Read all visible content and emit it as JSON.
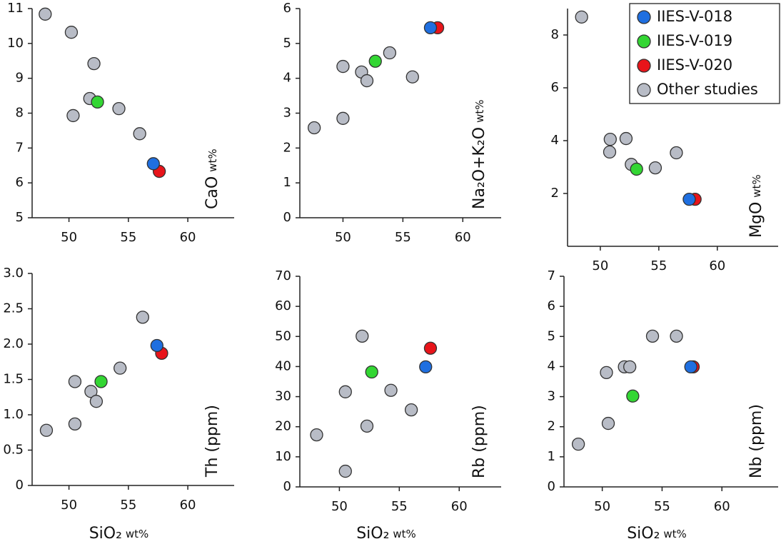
{
  "chart_data": [
    {
      "type": "scatter",
      "y_label": "CaO",
      "y_label_unit": "wt%",
      "xlim": [
        46.9,
        63.9
      ],
      "xticks": [
        50,
        55,
        60
      ],
      "ylim": [
        5,
        11
      ],
      "yticks": [
        5,
        6,
        7,
        8,
        9,
        10,
        11
      ],
      "series": [
        {
          "color": "#1f6fe0",
          "x": [
            57.1
          ],
          "y": [
            6.55
          ]
        },
        {
          "color": "#33d633",
          "x": [
            52.4
          ],
          "y": [
            8.32
          ]
        },
        {
          "color": "#e8141a",
          "x": [
            57.6
          ],
          "y": [
            6.33
          ]
        },
        {
          "color": "#b8bcc6",
          "x": [
            48.0,
            50.2,
            52.1,
            51.75,
            50.35,
            54.2,
            55.95
          ],
          "y": [
            10.84,
            10.32,
            9.42,
            8.42,
            7.93,
            8.13,
            7.41
          ]
        }
      ]
    },
    {
      "type": "scatter",
      "y_label": "Na₂O+K₂O",
      "y_label_unit": "wt%",
      "xlim": [
        46.4,
        63.2
      ],
      "xticks": [
        50,
        55,
        60
      ],
      "ylim": [
        0,
        6
      ],
      "yticks": [
        0,
        1,
        2,
        3,
        4,
        5,
        6
      ],
      "series": [
        {
          "color": "#1f6fe0",
          "x": [
            57.3
          ],
          "y": [
            5.45
          ]
        },
        {
          "color": "#33d633",
          "x": [
            52.7
          ],
          "y": [
            4.49
          ]
        },
        {
          "color": "#e8141a",
          "x": [
            57.9
          ],
          "y": [
            5.45
          ]
        },
        {
          "color": "#b8bcc6",
          "x": [
            47.6,
            50.0,
            50.0,
            51.55,
            52.0,
            53.9,
            55.8
          ],
          "y": [
            2.58,
            2.85,
            4.34,
            4.18,
            3.93,
            4.73,
            4.04
          ]
        }
      ]
    },
    {
      "type": "scatter",
      "y_label": "MgO",
      "y_label_unit": "wt%",
      "legend": "upper right",
      "xlim": [
        47.2,
        65.2
      ],
      "xticks": [
        50,
        55,
        60
      ],
      "ylim": [
        0,
        9
      ],
      "yticks": [
        2,
        4,
        6,
        8
      ],
      "series": [
        {
          "name": "IIES-V-018",
          "color": "#1f6fe0",
          "x": [
            57.6
          ],
          "y": [
            1.78
          ]
        },
        {
          "name": "IIES-V-019",
          "color": "#33d633",
          "x": [
            53.1
          ],
          "y": [
            2.92
          ]
        },
        {
          "name": "IIES-V-020",
          "color": "#e8141a",
          "x": [
            58.1
          ],
          "y": [
            1.78
          ]
        },
        {
          "name": "Other studies",
          "color": "#b8bcc6",
          "x": [
            48.4,
            50.85,
            50.8,
            52.2,
            52.65,
            54.7,
            56.5
          ],
          "y": [
            8.68,
            4.05,
            3.57,
            4.08,
            3.1,
            2.97,
            3.54
          ]
        }
      ]
    },
    {
      "type": "scatter",
      "y_label": "Th (ppm)",
      "x_label": "SiO₂",
      "x_label_unit": "wt%",
      "xlim": [
        46.9,
        63.9
      ],
      "xticks": [
        50,
        55,
        60
      ],
      "ylim": [
        0,
        3
      ],
      "yticks": [
        0,
        0.5,
        {
          "value": 1,
          "label": "1.0"
        },
        1.5,
        {
          "value": 2,
          "label": "2.0"
        },
        2.5,
        {
          "value": 3,
          "label": "3.0"
        }
      ],
      "series": [
        {
          "color": "#1f6fe0",
          "x": [
            57.4
          ],
          "y": [
            1.98
          ]
        },
        {
          "color": "#33d633",
          "x": [
            52.7
          ],
          "y": [
            1.47
          ]
        },
        {
          "color": "#e8141a",
          "x": [
            57.8
          ],
          "y": [
            1.87
          ]
        },
        {
          "color": "#b8bcc6",
          "x": [
            48.1,
            50.5,
            50.5,
            51.85,
            52.3,
            54.3,
            56.2
          ],
          "y": [
            0.78,
            0.87,
            1.47,
            1.33,
            1.19,
            1.66,
            2.38
          ]
        }
      ]
    },
    {
      "type": "scatter",
      "y_label": "Rb (ppm)",
      "x_label": "SiO₂",
      "x_label_unit": "wt%",
      "xlim": [
        46.7,
        63.5
      ],
      "xticks": [
        50,
        55,
        60
      ],
      "ylim": [
        0,
        70
      ],
      "yticks": [
        0,
        10,
        20,
        30,
        40,
        50,
        60,
        70
      ],
      "series": [
        {
          "color": "#1f6fe0",
          "x": [
            57.2
          ],
          "y": [
            39.9
          ]
        },
        {
          "color": "#33d633",
          "x": [
            52.7
          ],
          "y": [
            38.2
          ]
        },
        {
          "color": "#e8141a",
          "x": [
            57.6
          ],
          "y": [
            46.1
          ]
        },
        {
          "color": "#b8bcc6",
          "x": [
            48.1,
            50.5,
            50.5,
            51.9,
            52.3,
            54.3,
            56.0
          ],
          "y": [
            17.3,
            31.6,
            5.2,
            50.1,
            20.2,
            32.1,
            25.6
          ]
        }
      ]
    },
    {
      "type": "scatter",
      "y_label": "Nb (ppm)",
      "x_label": "SiO₂",
      "x_label_unit": "wt%",
      "xlim": [
        46.8,
        64.7
      ],
      "xticks": [
        50,
        55,
        60
      ],
      "ylim": [
        0,
        7
      ],
      "yticks": [
        0,
        1,
        2,
        3,
        4,
        5,
        6,
        7
      ],
      "series": [
        {
          "color": "#1f6fe0",
          "x": [
            57.4
          ],
          "y": [
            3.99
          ]
        },
        {
          "color": "#33d633",
          "x": [
            52.55
          ],
          "y": [
            3.02
          ]
        },
        {
          "color": "#e8141a",
          "x": [
            57.6
          ],
          "y": [
            3.99
          ]
        },
        {
          "color": "#b8bcc6",
          "x": [
            48.0,
            50.35,
            50.5,
            51.85,
            52.3,
            54.2,
            56.2
          ],
          "y": [
            1.42,
            3.8,
            2.11,
            3.99,
            3.99,
            5.01,
            5.01
          ]
        }
      ]
    }
  ]
}
